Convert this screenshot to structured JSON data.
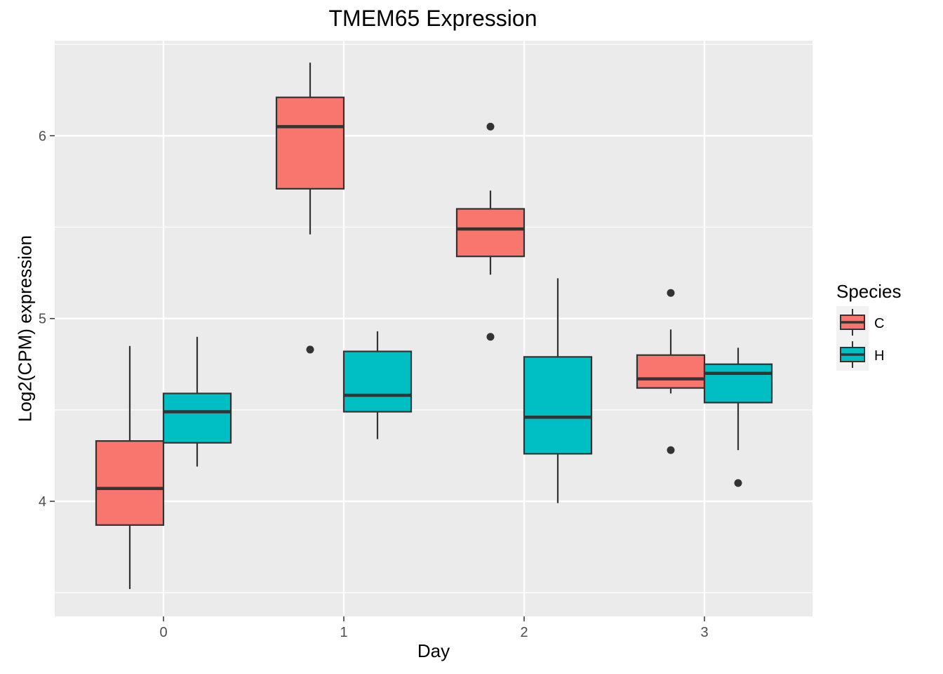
{
  "chart_data": {
    "type": "boxplot",
    "title": "TMEM65 Expression",
    "xlabel": "Day",
    "ylabel": "Log2(CPM) expression",
    "categories": [
      "0",
      "1",
      "2",
      "3"
    ],
    "ylim": [
      3.37,
      6.52
    ],
    "y_ticks": [
      4,
      5,
      6
    ],
    "grid": true,
    "legend": {
      "title": "Species",
      "position": "right"
    },
    "series": [
      {
        "name": "C",
        "color": "#F8766D",
        "boxes": [
          {
            "category": "0",
            "whisker_low": 3.52,
            "q1": 3.87,
            "median": 4.07,
            "q3": 4.33,
            "whisker_high": 4.85,
            "outliers": []
          },
          {
            "category": "1",
            "whisker_low": 5.46,
            "q1": 5.71,
            "median": 6.05,
            "q3": 6.21,
            "whisker_high": 6.4,
            "outliers": [
              4.83
            ]
          },
          {
            "category": "2",
            "whisker_low": 5.24,
            "q1": 5.34,
            "median": 5.49,
            "q3": 5.6,
            "whisker_high": 5.7,
            "outliers": [
              6.05,
              4.9
            ]
          },
          {
            "category": "3",
            "whisker_low": 4.59,
            "q1": 4.62,
            "median": 4.67,
            "q3": 4.8,
            "whisker_high": 4.94,
            "outliers": [
              5.14,
              4.28
            ]
          }
        ]
      },
      {
        "name": "H",
        "color": "#00BFC4",
        "boxes": [
          {
            "category": "0",
            "whisker_low": 4.19,
            "q1": 4.32,
            "median": 4.49,
            "q3": 4.59,
            "whisker_high": 4.9,
            "outliers": []
          },
          {
            "category": "1",
            "whisker_low": 4.34,
            "q1": 4.49,
            "median": 4.58,
            "q3": 4.82,
            "whisker_high": 4.93,
            "outliers": []
          },
          {
            "category": "2",
            "whisker_low": 3.99,
            "q1": 4.26,
            "median": 4.46,
            "q3": 4.79,
            "whisker_high": 5.22,
            "outliers": []
          },
          {
            "category": "3",
            "whisker_low": 4.28,
            "q1": 4.54,
            "median": 4.7,
            "q3": 4.75,
            "whisker_high": 4.84,
            "outliers": [
              4.1
            ]
          }
        ]
      }
    ]
  }
}
